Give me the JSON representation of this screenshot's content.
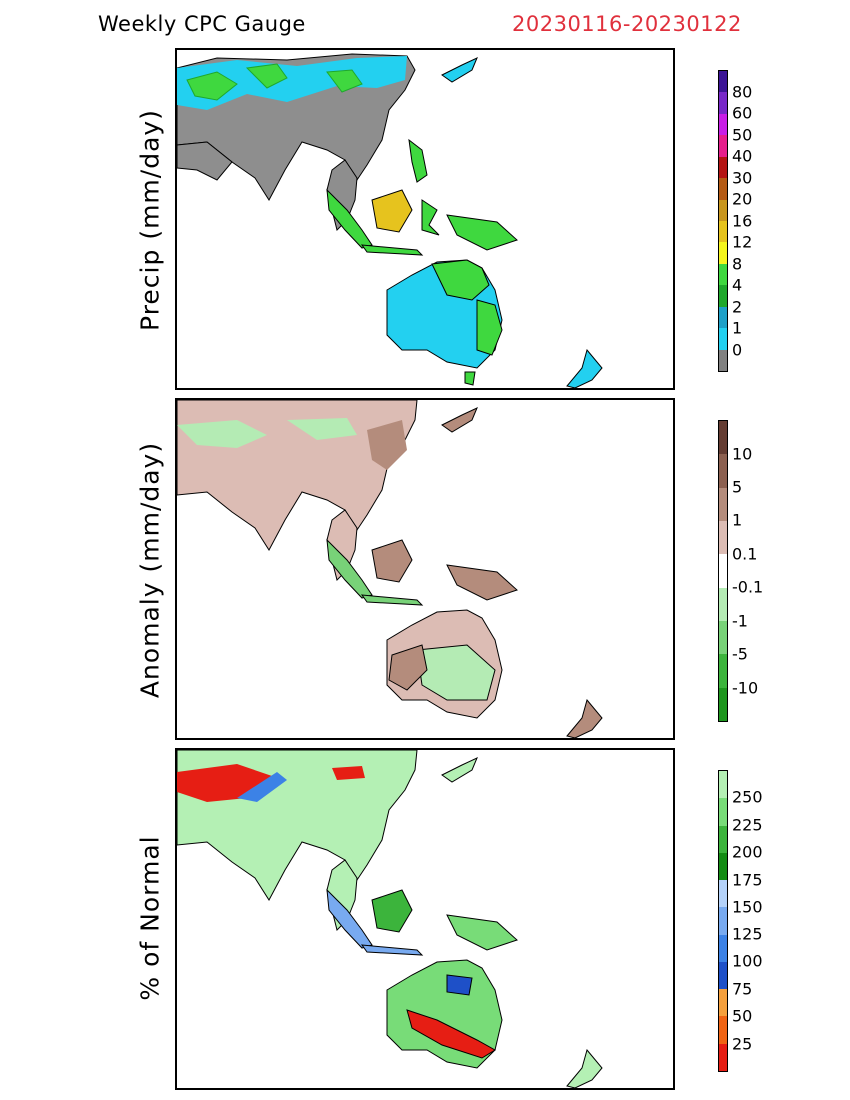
{
  "header": {
    "title": "Weekly CPC Gauge",
    "dates": "20230116-20230122"
  },
  "panels": [
    {
      "ylabel": "Precip (mm/day)",
      "colorbar": {
        "labels": [
          "0",
          "1",
          "2",
          "4",
          "8",
          "12",
          "16",
          "20",
          "30",
          "40",
          "50",
          "60",
          "80"
        ],
        "colors": [
          "#808080",
          "#23d0f0",
          "#1ea0c8",
          "#1fa82c",
          "#3fd83f",
          "#f5f51e",
          "#e6c31e",
          "#c8961e",
          "#b45a14",
          "#b41414",
          "#e61e8c",
          "#c81ee6",
          "#7828c8",
          "#3c1496"
        ]
      }
    },
    {
      "ylabel": "Anomaly (mm/day)",
      "colorbar": {
        "labels": [
          "10",
          "5",
          "1",
          "0.1",
          "-0.1",
          "-1",
          "-5",
          "-10"
        ],
        "colors": [
          "#1e961e",
          "#3cb43c",
          "#78d278",
          "#b4ebb4",
          "#ffffff",
          "#dcbcb4",
          "#b48c7c",
          "#8c6050",
          "#643c32"
        ]
      }
    },
    {
      "ylabel": "% of Normal",
      "colorbar": {
        "labels": [
          "250",
          "225",
          "200",
          "175",
          "150",
          "125",
          "100",
          "75",
          "50",
          "25"
        ],
        "colors": [
          "#e61e14",
          "#f06414",
          "#f5a03c",
          "#1e50c8",
          "#3c82e6",
          "#78aaf0",
          "#b4d2fa",
          "#148c14",
          "#3cb43c",
          "#78dc78",
          "#b4f0b4"
        ]
      }
    }
  ],
  "map_colors": {
    "land": "#9a9a9a",
    "coast": "#000000"
  }
}
